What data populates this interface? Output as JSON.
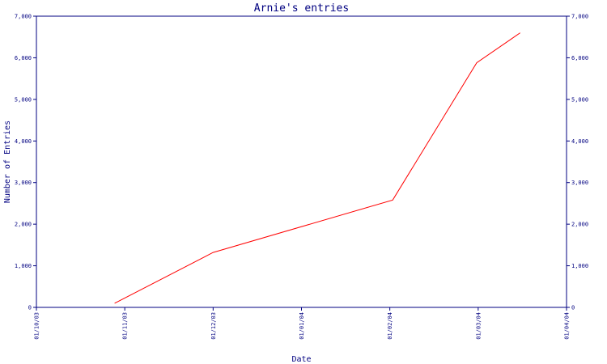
{
  "chart_data": {
    "type": "line",
    "title": "Arnie's entries",
    "xlabel": "Date",
    "ylabel": "Number of Entries",
    "x_ticks": [
      "01/10/03",
      "01/11/03",
      "01/12/03",
      "01/01/04",
      "01/02/04",
      "01/03/04",
      "01/04/04"
    ],
    "y_ticks": [
      "0",
      "1,000",
      "2,000",
      "3,000",
      "4,000",
      "5,000",
      "6,000",
      "7,000"
    ],
    "ylim": [
      0,
      7000
    ],
    "xlim": [
      "2003-10-01",
      "2004-04-01"
    ],
    "series": [
      {
        "x": [
          "2003-10-28",
          "2003-12-01",
          "2004-02-01",
          "2004-03-01",
          "2004-03-16"
        ],
        "y": [
          100,
          1320,
          2580,
          5880,
          6600
        ],
        "color": "#ff0000"
      }
    ],
    "grid": false,
    "axis_color": "#000080",
    "text_color": "#000080",
    "legend": "none"
  }
}
